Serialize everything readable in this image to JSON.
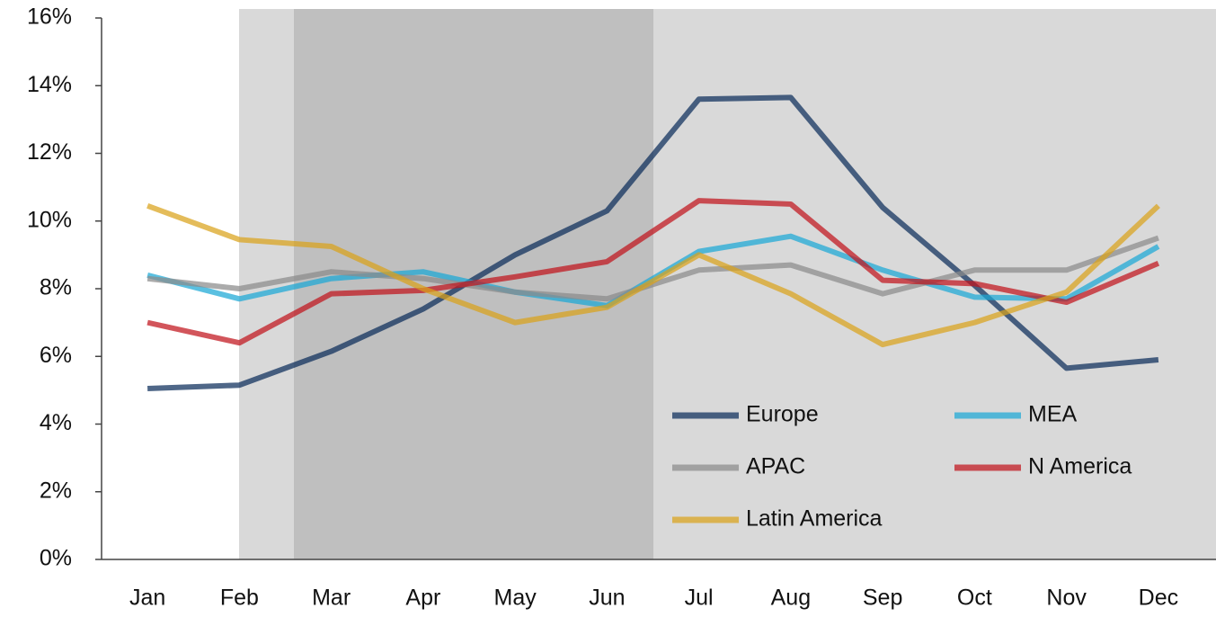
{
  "chart_data": {
    "type": "line",
    "categories": [
      "Jan",
      "Feb",
      "Mar",
      "Apr",
      "May",
      "Jun",
      "Jul",
      "Aug",
      "Sep",
      "Oct",
      "Nov",
      "Dec"
    ],
    "series": [
      {
        "name": "Europe",
        "color": "#0b2c5a",
        "values": [
          5.05,
          5.15,
          6.15,
          7.4,
          9.0,
          10.3,
          13.6,
          13.65,
          10.4,
          8.1,
          5.65,
          5.9
        ]
      },
      {
        "name": "MEA",
        "color": "#1aa7d6",
        "values": [
          8.4,
          7.7,
          8.3,
          8.5,
          7.9,
          7.5,
          9.1,
          9.55,
          8.55,
          7.75,
          7.7,
          9.25
        ]
      },
      {
        "name": "APAC",
        "color": "#8a8a8a",
        "values": [
          8.3,
          8.0,
          8.5,
          8.3,
          7.9,
          7.7,
          8.55,
          8.7,
          7.85,
          8.55,
          8.55,
          9.5
        ]
      },
      {
        "name": "N America",
        "color": "#c0141c",
        "values": [
          7.0,
          6.4,
          7.85,
          7.95,
          8.35,
          8.8,
          10.6,
          10.5,
          8.25,
          8.15,
          7.6,
          8.75
        ]
      },
      {
        "name": "Latin America",
        "color": "#d9a21b",
        "values": [
          10.45,
          9.45,
          9.25,
          8.0,
          7.0,
          7.45,
          9.0,
          7.85,
          6.35,
          7.0,
          7.9,
          10.45
        ]
      }
    ],
    "ylim": [
      0,
      16
    ],
    "yticks": [
      {
        "value": 0,
        "label": "0%"
      },
      {
        "value": 2,
        "label": "2%"
      },
      {
        "value": 4,
        "label": "4%"
      },
      {
        "value": 6,
        "label": "6%"
      },
      {
        "value": 8,
        "label": "8%"
      },
      {
        "value": 10,
        "label": "10%"
      },
      {
        "value": 12,
        "label": "12%"
      },
      {
        "value": 14,
        "label": "14%"
      },
      {
        "value": 16,
        "label": "16%"
      }
    ],
    "grid": false,
    "legend": "lower right"
  }
}
